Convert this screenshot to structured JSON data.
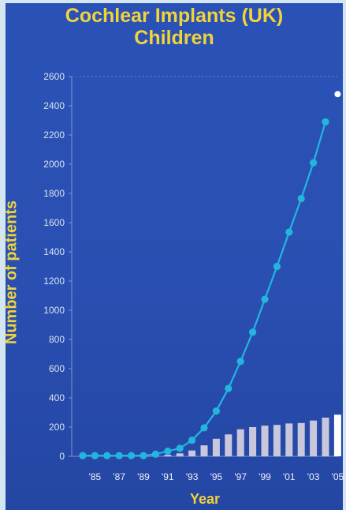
{
  "chart_data": {
    "type": "bar+line",
    "title": [
      "Cochlear Implants (UK)",
      "Children"
    ],
    "xlabel": "Year",
    "ylabel": "Number of patients",
    "ylim": [
      0,
      2600
    ],
    "yticks": [
      0,
      200,
      400,
      600,
      800,
      1000,
      1200,
      1400,
      1600,
      1800,
      2000,
      2200,
      2400,
      2600
    ],
    "x": [
      1984,
      1985,
      1986,
      1987,
      1988,
      1989,
      1990,
      1991,
      1992,
      1993,
      1994,
      1995,
      1996,
      1997,
      1998,
      1999,
      2000,
      2001,
      2002,
      2003,
      2004,
      2005
    ],
    "xtick_labels": [
      "'85",
      "'87",
      "'89",
      "'91",
      "'93",
      "'95",
      "'97",
      "'99",
      "'01",
      "'03",
      "'05"
    ],
    "xtick_years": [
      1985,
      1987,
      1989,
      1991,
      1993,
      1995,
      1997,
      1999,
      2001,
      2003,
      2005
    ],
    "series": [
      {
        "kind": "bar",
        "color": "#c9c7dc",
        "values": [
          0,
          0,
          0,
          0,
          0,
          0,
          5,
          10,
          20,
          40,
          75,
          120,
          150,
          185,
          200,
          210,
          215,
          225,
          228,
          245,
          265,
          285
        ]
      },
      {
        "kind": "line",
        "color": "#22b6df",
        "values": [
          5,
          5,
          5,
          5,
          5,
          5,
          15,
          35,
          55,
          110,
          195,
          310,
          465,
          650,
          850,
          1075,
          1300,
          1535,
          1765,
          2010,
          2290,
          null
        ]
      }
    ],
    "highlight": {
      "bar_year": 2005,
      "bar_color": "#ffffff",
      "point": {
        "x": 2005,
        "y": 2480,
        "color": "#ffffff"
      }
    },
    "grid": false,
    "legend": "none"
  }
}
